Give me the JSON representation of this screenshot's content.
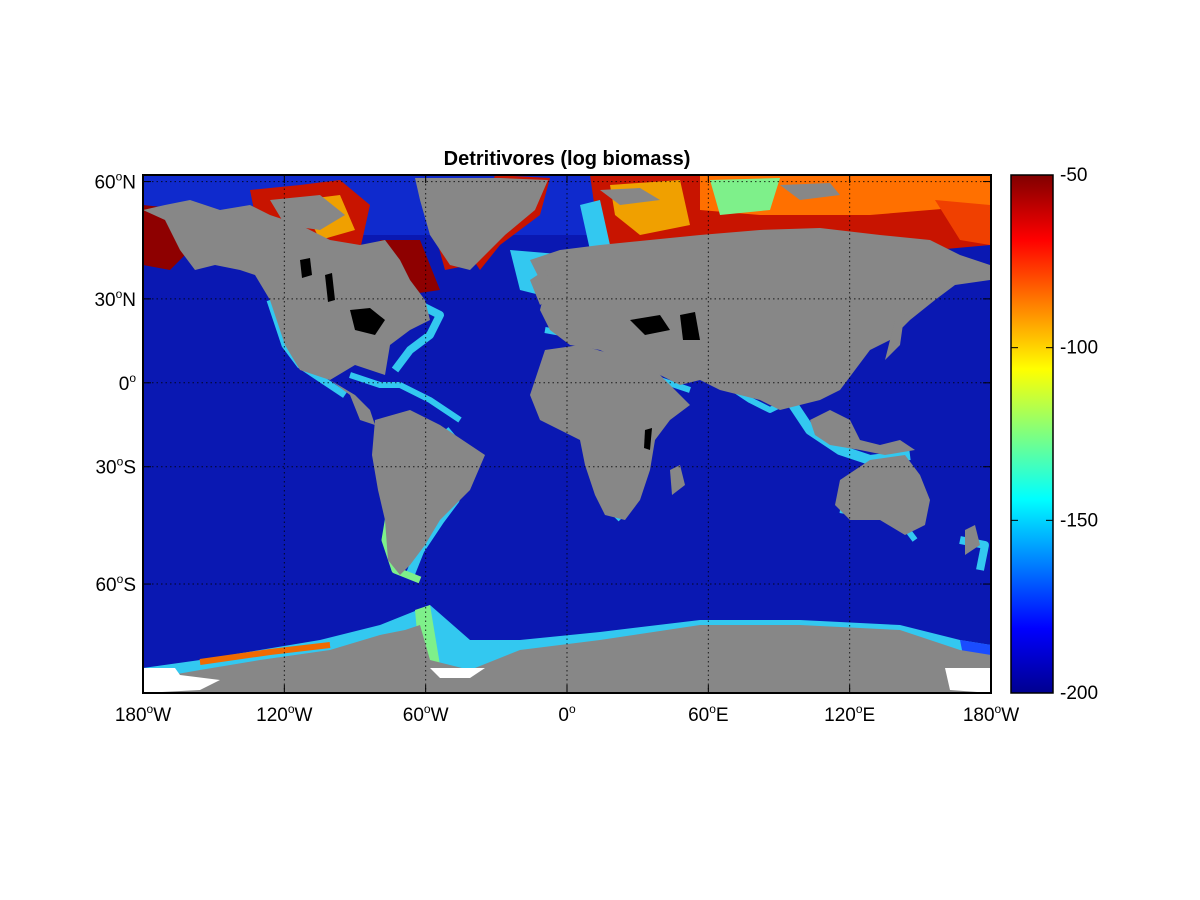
{
  "title": "Detritivores (log biomass)",
  "colors": {
    "ocean": "#0a18b2",
    "land": "#878787",
    "inland_water": "#000000",
    "ice_gap": "#ffffff",
    "coastal_low": "#33c8f0",
    "coastal_mid": "#7ef08a",
    "coastal_high": "#f06a00",
    "arctic_max": "#8e0000"
  },
  "colormap": "jet",
  "x_ticks": [
    {
      "value": -180,
      "num": "180",
      "hemi": "W"
    },
    {
      "value": -120,
      "num": "120",
      "hemi": "W"
    },
    {
      "value": -60,
      "num": "60",
      "hemi": "W"
    },
    {
      "value": 0,
      "num": "0",
      "hemi": ""
    },
    {
      "value": 60,
      "num": "60",
      "hemi": "E"
    },
    {
      "value": 120,
      "num": "120",
      "hemi": "E"
    },
    {
      "value": 180,
      "num": "180",
      "hemi": "W"
    }
  ],
  "y_ticks": [
    {
      "value": 60,
      "num": "60",
      "hemi": "N"
    },
    {
      "value": 30,
      "num": "30",
      "hemi": "N"
    },
    {
      "value": 0,
      "num": "0",
      "hemi": ""
    },
    {
      "value": -30,
      "num": "30",
      "hemi": "S"
    },
    {
      "value": -60,
      "num": "60",
      "hemi": "S"
    }
  ],
  "degree_symbol": "o",
  "colorbar": {
    "min": -200,
    "max": -50,
    "ticks": [
      {
        "value": -50,
        "label": "-50"
      },
      {
        "value": -100,
        "label": "-100"
      },
      {
        "value": -150,
        "label": "-150"
      },
      {
        "value": -200,
        "label": "-200"
      }
    ]
  }
}
